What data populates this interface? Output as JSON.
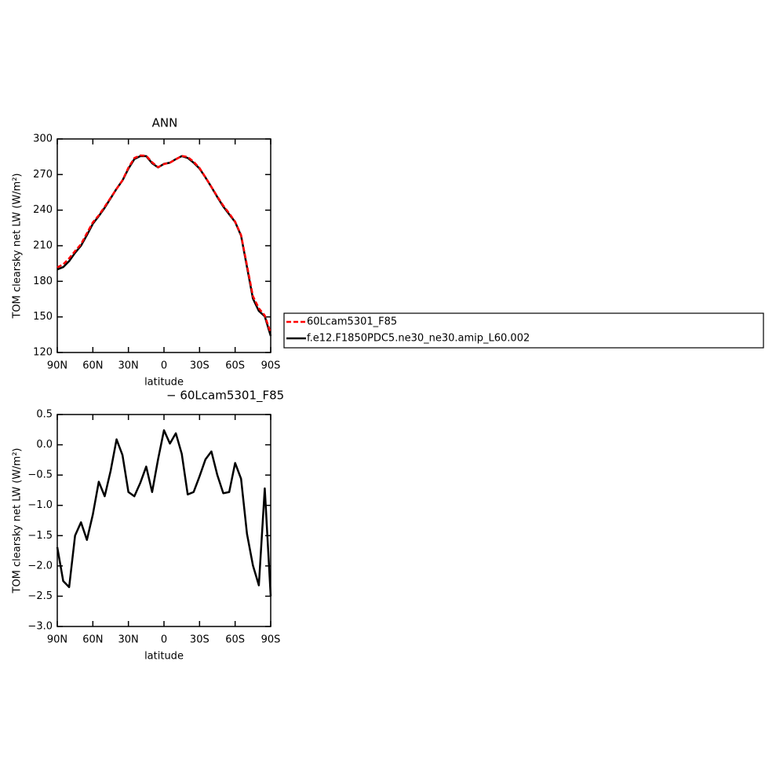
{
  "chart_data": [
    {
      "type": "line",
      "title": "ANN",
      "xlabel": "latitude",
      "ylabel": "TOM clearsky net LW (W/m²)",
      "x": [
        90,
        85,
        80,
        75,
        70,
        65,
        60,
        55,
        50,
        45,
        40,
        35,
        30,
        25,
        20,
        15,
        10,
        5,
        0,
        -5,
        -10,
        -15,
        -20,
        -25,
        -30,
        -35,
        -40,
        -45,
        -50,
        -55,
        -60,
        -65,
        -70,
        -75,
        -80,
        -85,
        -90
      ],
      "xlim": [
        90,
        -90
      ],
      "xticks": [
        {
          "value": 90,
          "label": "90N"
        },
        {
          "value": 60,
          "label": "60N"
        },
        {
          "value": 30,
          "label": "30N"
        },
        0,
        {
          "value": -30,
          "label": "30S"
        },
        {
          "value": -60,
          "label": "60S"
        },
        {
          "value": -90,
          "label": "90S"
        }
      ],
      "ylim": [
        120,
        300
      ],
      "yticks": [
        120,
        150,
        180,
        210,
        240,
        270,
        300
      ],
      "legend": "right",
      "series": [
        {
          "name": "60Lcam5301_F85",
          "color": "#ff0000",
          "dash": true,
          "values": [
            191.7,
            194.3,
            199.4,
            205.5,
            211.3,
            220.6,
            229.7,
            235.6,
            242.9,
            250.4,
            257.9,
            265.2,
            275.8,
            283.9,
            286.1,
            285.9,
            280.3,
            276.2,
            278.8,
            280,
            282.8,
            285.7,
            284.8,
            280.8,
            275.5,
            267.7,
            259.6,
            251.5,
            243.8,
            237.3,
            230.3,
            219.1,
            193.5,
            167.5,
            157.3,
            151.2,
            136.5
          ]
        },
        {
          "name": "f.e12.F1850PDC5.ne30_ne30.amip_L60.002",
          "color": "#000000",
          "values": [
            190,
            192,
            197,
            204,
            210,
            219,
            228.5,
            235,
            242,
            250,
            258,
            265,
            275,
            283,
            285.5,
            285.5,
            279.5,
            276,
            279,
            280,
            283,
            285.5,
            284,
            280,
            275,
            267.5,
            259.5,
            251,
            243,
            236.5,
            230,
            218.5,
            192,
            165.5,
            155,
            150.5,
            134
          ]
        }
      ]
    },
    {
      "type": "line",
      "title": "− 60Lcam5301_F85",
      "xlabel": "latitude",
      "ylabel": "TOM clearsky net LW (W/m²)",
      "x": [
        90,
        85,
        80,
        75,
        70,
        65,
        60,
        55,
        50,
        45,
        40,
        35,
        30,
        25,
        20,
        15,
        10,
        5,
        0,
        -5,
        -10,
        -15,
        -20,
        -25,
        -30,
        -35,
        -40,
        -45,
        -50,
        -55,
        -60,
        -65,
        -70,
        -75,
        -80,
        -85,
        -90
      ],
      "xlim": [
        90,
        -90
      ],
      "xticks": [
        {
          "value": 90,
          "label": "90N"
        },
        {
          "value": 60,
          "label": "60N"
        },
        {
          "value": 30,
          "label": "30N"
        },
        0,
        {
          "value": -30,
          "label": "30S"
        },
        {
          "value": -60,
          "label": "60S"
        },
        {
          "value": -90,
          "label": "90S"
        }
      ],
      "ylim": [
        -3,
        0.5
      ],
      "yticks": [
        {
          "value": -3,
          "label": "−3.0"
        },
        {
          "value": -2.5,
          "label": "−2.5"
        },
        {
          "value": -2,
          "label": "−2.0"
        },
        {
          "value": -1.5,
          "label": "−1.5"
        },
        {
          "value": -1,
          "label": "−1.0"
        },
        {
          "value": -0.5,
          "label": "−0.5"
        },
        {
          "value": 0,
          "label": "0.0"
        },
        0.5
      ],
      "series": [
        {
          "color": "#000000",
          "values": [
            -1.69,
            -2.25,
            -2.35,
            -1.5,
            -1.28,
            -1.57,
            -1.15,
            -0.61,
            -0.85,
            -0.43,
            0.09,
            -0.17,
            -0.78,
            -0.85,
            -0.63,
            -0.36,
            -0.78,
            -0.24,
            0.24,
            0.02,
            0.19,
            -0.15,
            -0.82,
            -0.78,
            -0.52,
            -0.24,
            -0.11,
            -0.5,
            -0.8,
            -0.78,
            -0.3,
            -0.56,
            -1.47,
            -1.99,
            -2.32,
            -0.72,
            -2.5
          ]
        }
      ]
    }
  ]
}
